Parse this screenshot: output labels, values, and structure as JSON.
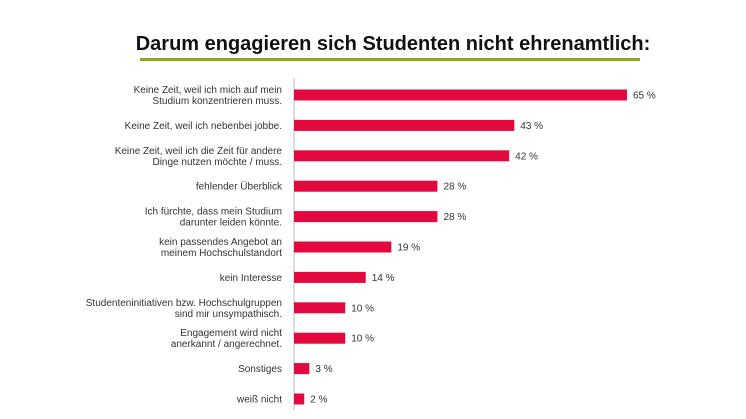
{
  "colors": {
    "bar": "#e3093f",
    "rule": "#8aab1f",
    "axis": "#bbbbbb"
  },
  "chart_data": {
    "type": "bar",
    "orientation": "horizontal",
    "title": "Darum engagieren sich Studenten nicht ehrenamtlich:",
    "unit": "%",
    "categories": [
      [
        "Keine Zeit, weil ich mich auf mein",
        "Studium konzentrieren muss."
      ],
      [
        "Keine Zeit, weil ich nebenbei jobbe."
      ],
      [
        "Keine Zeit, weil ich die Zeit für andere",
        "Dinge nutzen möchte / muss."
      ],
      [
        "fehlender Überblick"
      ],
      [
        "Ich fürchte, dass mein Studium",
        "darunter leiden könnte."
      ],
      [
        "kein passendes Angebot an",
        "meinem Hochschulstandort"
      ],
      [
        "kein Interesse"
      ],
      [
        "Studenteninitiativen bzw. Hochschulgruppen",
        "sind mir unsympathisch."
      ],
      [
        "Engagement wird nicht",
        "anerkannt / angerechnet."
      ],
      [
        "Sonstiges"
      ],
      [
        "weiß nicht"
      ]
    ],
    "values": [
      65,
      43,
      42,
      28,
      28,
      19,
      14,
      10,
      10,
      3,
      2
    ],
    "value_labels": [
      "65 %",
      "43 %",
      "42 %",
      "28 %",
      "28 %",
      "19 %",
      "14 %",
      "10 %",
      "10 %",
      "3 %",
      "2 %"
    ],
    "xlim": [
      0,
      65
    ],
    "grid": false,
    "legend": "none"
  }
}
